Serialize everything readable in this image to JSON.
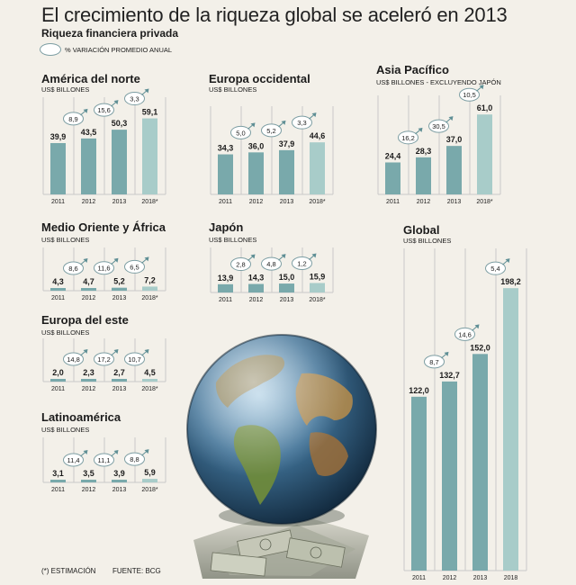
{
  "header": {
    "title": "El crecimiento de la riqueza global se aceleró en 2013",
    "subtitle": "Riqueza financiera privada",
    "legend_label": "% VARIACIÓN PROMEDIO ANUAL"
  },
  "footer": {
    "note": "(*) ESTIMACIÓN",
    "source": "FUENTE: BCG"
  },
  "colors": {
    "bar_dark": "#79a9ab",
    "bar_light": "#a8ccc9",
    "grid": "#c9c9c9",
    "bubble_stroke": "#7d9ea3",
    "arrow": "#5f8f95"
  },
  "chart_data": [
    {
      "type": "bar",
      "title": "América del norte",
      "ylabel": "US$ BILLONES",
      "categories": [
        "2011",
        "2012",
        "2013",
        "2018*"
      ],
      "values": [
        39.9,
        43.5,
        50.3,
        59.1
      ],
      "value_labels": [
        "39,9",
        "43,5",
        "50,3",
        "59,1"
      ],
      "growth_labels": [
        "8,9",
        "15,6",
        "3,3"
      ],
      "ylim": [
        0,
        65
      ]
    },
    {
      "type": "bar",
      "title": "Europa occidental",
      "ylabel": "US$ BILLONES",
      "categories": [
        "2011",
        "2012",
        "2013",
        "2018*"
      ],
      "values": [
        34.3,
        36.0,
        37.9,
        44.6
      ],
      "value_labels": [
        "34,3",
        "36,0",
        "37,9",
        "44,6"
      ],
      "growth_labels": [
        "5,0",
        "5,2",
        "3,3"
      ],
      "ylim": [
        0,
        65
      ]
    },
    {
      "type": "bar",
      "title": "Asia Pacífico",
      "ylabel": "US$ BILLONES - EXCLUYENDO JAPÓN",
      "categories": [
        "2011",
        "2012",
        "2013",
        "2018*"
      ],
      "values": [
        24.4,
        28.3,
        37.0,
        61.0
      ],
      "value_labels": [
        "24,4",
        "28,3",
        "37,0",
        "61,0"
      ],
      "growth_labels": [
        "16,2",
        "30,5",
        "10,5"
      ],
      "ylim": [
        0,
        65
      ]
    },
    {
      "type": "bar",
      "title": "Medio Oriente y África",
      "ylabel": "US$ BILLONES",
      "categories": [
        "2011",
        "2012",
        "2013",
        "2018*"
      ],
      "values": [
        4.3,
        4.7,
        5.2,
        7.2
      ],
      "value_labels": [
        "4,3",
        "4,7",
        "5,2",
        "7,2"
      ],
      "growth_labels": [
        "8,6",
        "11,6",
        "6,5"
      ],
      "ylim": [
        0,
        65
      ]
    },
    {
      "type": "bar",
      "title": "Japón",
      "ylabel": "US$ BILLONES",
      "categories": [
        "2011",
        "2012",
        "2013",
        "2018*"
      ],
      "values": [
        13.9,
        14.3,
        15.0,
        15.9
      ],
      "value_labels": [
        "13,9",
        "14,3",
        "15,0",
        "15,9"
      ],
      "growth_labels": [
        "2,8",
        "4,8",
        "1,2"
      ],
      "ylim": [
        0,
        65
      ]
    },
    {
      "type": "bar",
      "title": "Europa del este",
      "ylabel": "US$ BILLONES",
      "categories": [
        "2011",
        "2012",
        "2013",
        "2018*"
      ],
      "values": [
        2.0,
        2.3,
        2.7,
        4.5
      ],
      "value_labels": [
        "2,0",
        "2,3",
        "2,7",
        "4,5"
      ],
      "growth_labels": [
        "14,8",
        "17,2",
        "10,7"
      ],
      "ylim": [
        0,
        65
      ]
    },
    {
      "type": "bar",
      "title": "Latinoamérica",
      "ylabel": "US$ BILLONES",
      "categories": [
        "2011",
        "2012",
        "2013",
        "2018*"
      ],
      "values": [
        3.1,
        3.5,
        3.9,
        5.9
      ],
      "value_labels": [
        "3,1",
        "3,5",
        "3,9",
        "5,9"
      ],
      "growth_labels": [
        "11,4",
        "11,1",
        "8,8"
      ],
      "ylim": [
        0,
        65
      ]
    },
    {
      "type": "bar",
      "title": "Global",
      "ylabel": "US$ BILLONES",
      "categories": [
        "2011",
        "2012",
        "2013",
        "2018"
      ],
      "values": [
        122.0,
        132.7,
        152.0,
        198.2
      ],
      "value_labels": [
        "122,0",
        "132,7",
        "152,0",
        "198,2"
      ],
      "growth_labels": [
        "8,7",
        "14,6",
        "5,4"
      ],
      "ylim": [
        0,
        210
      ]
    }
  ]
}
